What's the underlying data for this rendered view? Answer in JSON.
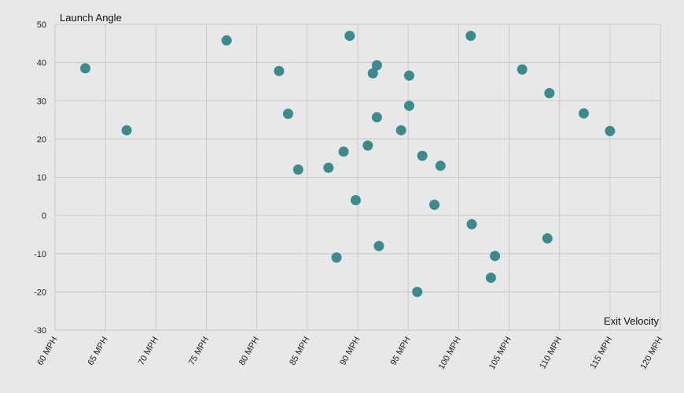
{
  "chart_data": {
    "type": "scatter",
    "xlabel": "Exit Velocity",
    "ylabel": "Launch Angle",
    "xlim": [
      60,
      120
    ],
    "ylim": [
      -30,
      50
    ],
    "x_ticks": [
      60,
      65,
      70,
      75,
      80,
      85,
      90,
      95,
      100,
      105,
      110,
      115,
      120
    ],
    "x_tick_labels": [
      "60 MPH",
      "65 MPH",
      "70 MPH",
      "75 MPH",
      "80 MPH",
      "85 MPH",
      "90 MPH",
      "95 MPH",
      "100 MPH",
      "105 MPH",
      "110 MPH",
      "115 MPH",
      "120 MPH"
    ],
    "y_ticks": [
      50,
      40,
      30,
      20,
      10,
      0,
      -10,
      -20,
      -30
    ],
    "y_tick_labels": [
      "50",
      "40",
      "30",
      "20",
      "10",
      "0",
      "-10",
      "-20",
      "-30"
    ],
    "grid": true,
    "point_color": "#3a8a8e",
    "background_color": "#e8e8e8",
    "grid_color": "#c9c9c9",
    "series": [
      {
        "points": [
          {
            "x": 63.0,
            "y": 38.5
          },
          {
            "x": 67.1,
            "y": 22.3
          },
          {
            "x": 77.0,
            "y": 45.8
          },
          {
            "x": 82.2,
            "y": 37.8
          },
          {
            "x": 83.1,
            "y": 26.6
          },
          {
            "x": 84.1,
            "y": 12.0
          },
          {
            "x": 87.1,
            "y": 12.5
          },
          {
            "x": 87.9,
            "y": -11.0
          },
          {
            "x": 88.6,
            "y": 16.7
          },
          {
            "x": 89.2,
            "y": 47.0
          },
          {
            "x": 89.8,
            "y": 4.0
          },
          {
            "x": 91.0,
            "y": 18.3
          },
          {
            "x": 91.5,
            "y": 37.2
          },
          {
            "x": 91.9,
            "y": 39.3
          },
          {
            "x": 91.9,
            "y": 25.7
          },
          {
            "x": 92.1,
            "y": -8.0
          },
          {
            "x": 94.3,
            "y": 22.3
          },
          {
            "x": 95.1,
            "y": 28.7
          },
          {
            "x": 95.1,
            "y": 36.6
          },
          {
            "x": 95.9,
            "y": -20.0
          },
          {
            "x": 96.4,
            "y": 15.6
          },
          {
            "x": 97.6,
            "y": 2.8
          },
          {
            "x": 98.2,
            "y": 13.0
          },
          {
            "x": 101.2,
            "y": 47.0
          },
          {
            "x": 101.3,
            "y": -2.3
          },
          {
            "x": 103.2,
            "y": -16.3
          },
          {
            "x": 103.6,
            "y": -10.6
          },
          {
            "x": 106.3,
            "y": 38.2
          },
          {
            "x": 108.8,
            "y": -6.0
          },
          {
            "x": 109.0,
            "y": 32.0
          },
          {
            "x": 112.4,
            "y": 26.7
          },
          {
            "x": 115.0,
            "y": 22.1
          }
        ]
      }
    ]
  }
}
